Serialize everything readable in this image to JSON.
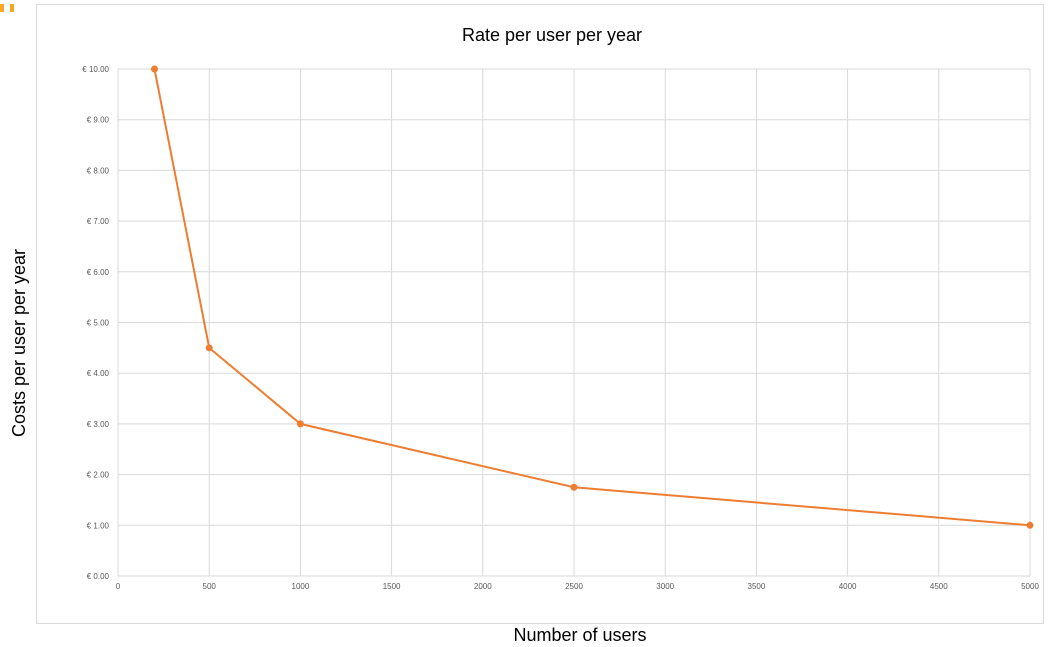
{
  "chart_data": {
    "type": "line",
    "title": "Rate per user per year",
    "xlabel": "Number of users",
    "ylabel": "Costs per user per year",
    "x": [
      200,
      500,
      1000,
      2500,
      5000
    ],
    "series": [
      {
        "values": [
          10.0,
          4.5,
          3.0,
          1.75,
          1.0
        ],
        "color": "#ed7d31"
      }
    ],
    "xlim": [
      0,
      5000
    ],
    "ylim": [
      0,
      10
    ],
    "x_ticks": [
      "0",
      "500",
      "1000",
      "1500",
      "2000",
      "2500",
      "3000",
      "3500",
      "4000",
      "4500",
      "5000"
    ],
    "y_ticks": [
      "€ 0.00",
      "€ 1.00",
      "€ 2.00",
      "€ 3.00",
      "€ 4.00",
      "€ 5.00",
      "€ 6.00",
      "€ 7.00",
      "€ 8.00",
      "€ 9.00",
      "€ 10.00"
    ],
    "grid": true,
    "legend": "none"
  },
  "colors": {
    "series": "#ed7d31",
    "grid": "#d9d9d9",
    "tick_text": "#595959",
    "corner_mark": "#f5a623"
  }
}
